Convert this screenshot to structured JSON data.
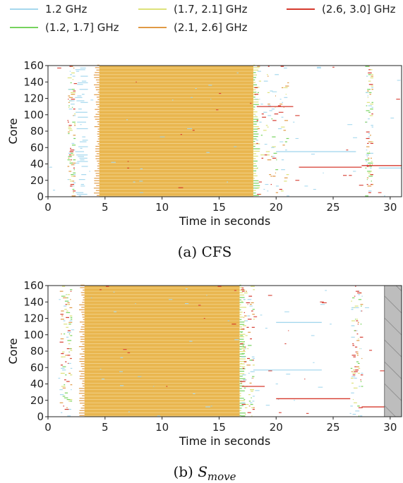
{
  "legend": [
    {
      "label": "1.2 GHz",
      "color": "#a6d8ee"
    },
    {
      "label": "(1.2, 1.7] GHz",
      "color": "#76d35e"
    },
    {
      "label": "(1.7, 2.1] GHz",
      "color": "#dde27a"
    },
    {
      "label": "(2.1, 2.6] GHz",
      "color": "#e09a45"
    },
    {
      "label": "(2.6, 3.0] GHz",
      "color": "#d63a2e"
    }
  ],
  "chart_data": [
    {
      "type": "scatter",
      "caption": "(a) CFS",
      "xlabel": "Time in seconds",
      "ylabel": "Core",
      "xlim": [
        0,
        31
      ],
      "ylim": [
        0,
        160
      ],
      "xticks": [
        0,
        5,
        10,
        15,
        20,
        25,
        30
      ],
      "yticks": [
        0,
        20,
        40,
        60,
        80,
        100,
        120,
        140,
        160
      ],
      "active_intervals": [
        {
          "start": 1.7,
          "end": 2.3,
          "band": "mixed"
        },
        {
          "start": 2.3,
          "end": 3.5,
          "band": "1.2 GHz"
        },
        {
          "start": 4.5,
          "end": 18.0,
          "band": "(2.1, 2.6] GHz"
        },
        {
          "start": 18.0,
          "end": 21.0,
          "band": "mixed"
        },
        {
          "start": 27.8,
          "end": 28.4,
          "band": "mixed"
        }
      ],
      "hatched_region": null
    },
    {
      "type": "scatter",
      "caption": "(b) S_move",
      "caption_prefix": "(b) ",
      "caption_main": "S",
      "caption_sub": "move",
      "xlabel": "Time in seconds",
      "ylabel": "Core",
      "xlim": [
        0,
        31
      ],
      "ylim": [
        0,
        160
      ],
      "xticks": [
        0,
        5,
        10,
        15,
        20,
        25,
        30
      ],
      "yticks": [
        0,
        20,
        40,
        60,
        80,
        100,
        120,
        140,
        160
      ],
      "active_intervals": [
        {
          "start": 1.0,
          "end": 2.0,
          "band": "mixed"
        },
        {
          "start": 3.2,
          "end": 16.8,
          "band": "(2.1, 2.6] GHz"
        },
        {
          "start": 16.8,
          "end": 18.0,
          "band": "mixed"
        },
        {
          "start": 26.5,
          "end": 27.5,
          "band": "mixed"
        }
      ],
      "hatched_region": {
        "start": 29.5,
        "end": 31
      }
    }
  ]
}
